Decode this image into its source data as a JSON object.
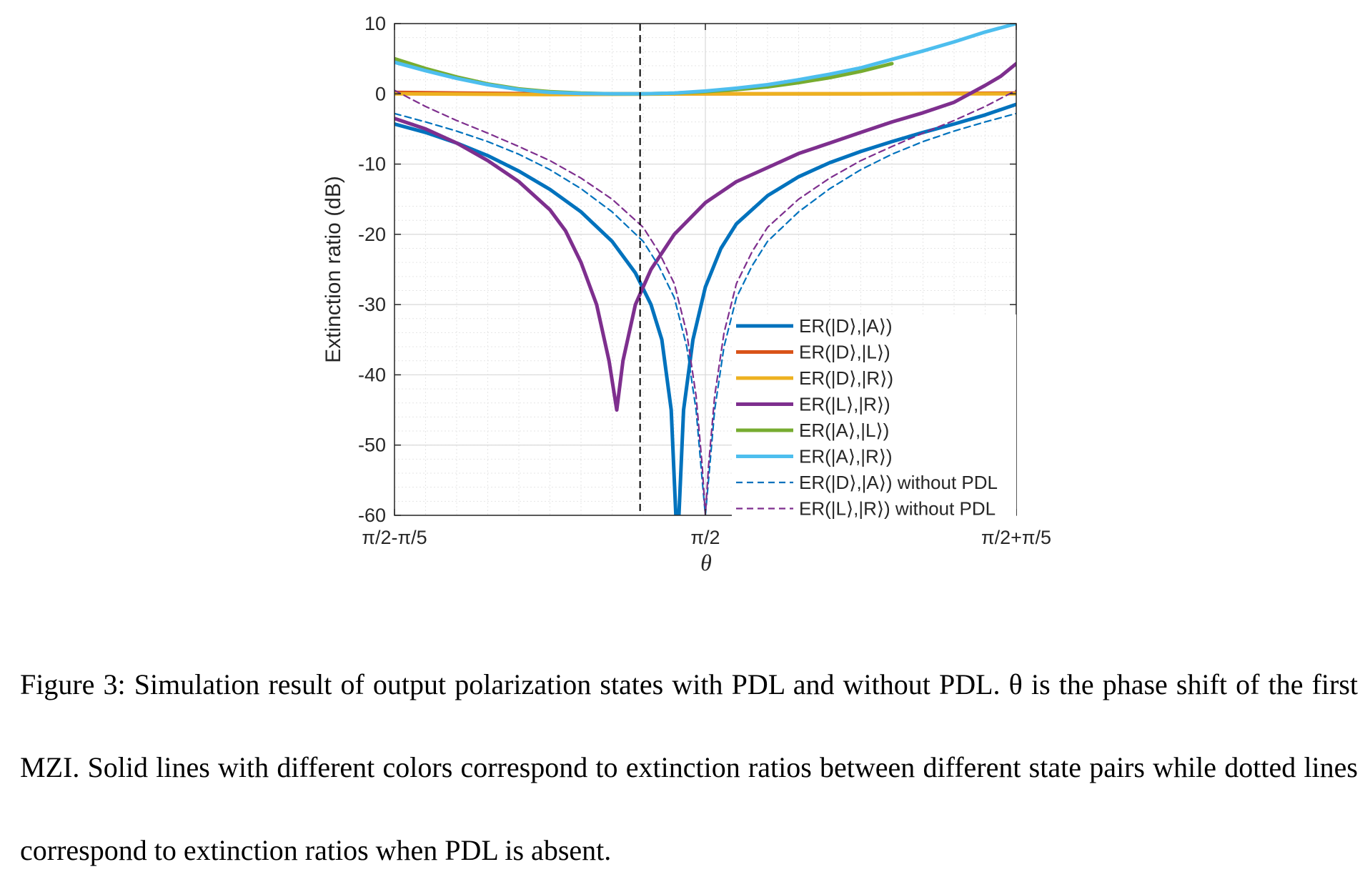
{
  "caption": {
    "text": "Figure 3: Simulation result of output polarization states with PDL and without PDL. θ is the phase shift of the first MZI. Solid lines with different colors correspond to extinction ratios between different state pairs while dotted lines correspond to extinction ratios when PDL is absent."
  },
  "chart_data": {
    "type": "line",
    "title": "",
    "xlabel": "θ",
    "ylabel": "Extinction ratio (dB)",
    "xlim": [
      -0.2,
      0.2
    ],
    "x_units": "theta - π/2 in units of π",
    "ylim": [
      -60,
      10
    ],
    "yticks": [
      10,
      0,
      -10,
      -20,
      -30,
      -40,
      -50,
      -60
    ],
    "xticks": [
      {
        "value": -0.2,
        "label": "π/2-π/5"
      },
      {
        "value": 0.0,
        "label": "π/2"
      },
      {
        "value": 0.2,
        "label": "π/2+π/5"
      }
    ],
    "grid": true,
    "minor_grid": true,
    "legend_position": "bottom-right",
    "vline": {
      "x": -0.042,
      "style": "dashed",
      "color": "#000000"
    },
    "series": [
      {
        "name": "ER(|D⟩,|A⟩)",
        "color": "#0072BD",
        "style": "solid",
        "points": [
          [
            -0.2,
            -4.3
          ],
          [
            -0.18,
            -5.5
          ],
          [
            -0.16,
            -7.0
          ],
          [
            -0.14,
            -8.8
          ],
          [
            -0.12,
            -11.0
          ],
          [
            -0.1,
            -13.6
          ],
          [
            -0.08,
            -16.8
          ],
          [
            -0.06,
            -21.0
          ],
          [
            -0.045,
            -25.5
          ],
          [
            -0.035,
            -30.0
          ],
          [
            -0.028,
            -35.0
          ],
          [
            -0.022,
            -45.0
          ],
          [
            -0.019,
            -60.0
          ],
          [
            -0.017,
            -60.0
          ],
          [
            -0.014,
            -45.0
          ],
          [
            -0.008,
            -35.0
          ],
          [
            0.0,
            -27.5
          ],
          [
            0.01,
            -22.0
          ],
          [
            0.02,
            -18.5
          ],
          [
            0.04,
            -14.5
          ],
          [
            0.06,
            -11.8
          ],
          [
            0.08,
            -9.8
          ],
          [
            0.1,
            -8.2
          ],
          [
            0.12,
            -6.8
          ],
          [
            0.14,
            -5.5
          ],
          [
            0.16,
            -4.3
          ],
          [
            0.18,
            -3.0
          ],
          [
            0.2,
            -1.5
          ]
        ]
      },
      {
        "name": "ER(|D⟩,|L⟩)",
        "color": "#D95319",
        "style": "solid",
        "points": [
          [
            -0.2,
            0.2
          ],
          [
            -0.1,
            0.0
          ],
          [
            0.0,
            0.0
          ],
          [
            0.1,
            0.0
          ],
          [
            0.2,
            0.1
          ]
        ]
      },
      {
        "name": "ER(|D⟩,|R⟩)",
        "color": "#EDB120",
        "style": "solid",
        "points": [
          [
            -0.2,
            0.0
          ],
          [
            -0.1,
            -0.1
          ],
          [
            0.0,
            0.0
          ],
          [
            0.1,
            0.0
          ],
          [
            0.2,
            0.0
          ]
        ]
      },
      {
        "name": "ER(|L⟩,|R⟩)",
        "color": "#7E2F8E",
        "style": "solid",
        "points": [
          [
            -0.2,
            -3.5
          ],
          [
            -0.18,
            -5.0
          ],
          [
            -0.16,
            -7.0
          ],
          [
            -0.14,
            -9.5
          ],
          [
            -0.12,
            -12.5
          ],
          [
            -0.1,
            -16.5
          ],
          [
            -0.09,
            -19.5
          ],
          [
            -0.08,
            -24.0
          ],
          [
            -0.07,
            -30.0
          ],
          [
            -0.062,
            -38.0
          ],
          [
            -0.057,
            -45.0
          ],
          [
            -0.053,
            -38.0
          ],
          [
            -0.045,
            -30.0
          ],
          [
            -0.035,
            -25.0
          ],
          [
            -0.02,
            -20.0
          ],
          [
            0.0,
            -15.5
          ],
          [
            0.02,
            -12.5
          ],
          [
            0.04,
            -10.5
          ],
          [
            0.06,
            -8.5
          ],
          [
            0.08,
            -7.0
          ],
          [
            0.1,
            -5.5
          ],
          [
            0.12,
            -4.0
          ],
          [
            0.14,
            -2.7
          ],
          [
            0.16,
            -1.2
          ],
          [
            0.18,
            1.2
          ],
          [
            0.19,
            2.5
          ],
          [
            0.2,
            4.3
          ]
        ]
      },
      {
        "name": "ER(|A⟩,|L⟩)",
        "color": "#77AC30",
        "style": "solid",
        "points": [
          [
            -0.2,
            5.0
          ],
          [
            -0.18,
            3.6
          ],
          [
            -0.16,
            2.4
          ],
          [
            -0.14,
            1.4
          ],
          [
            -0.12,
            0.7
          ],
          [
            -0.1,
            0.3
          ],
          [
            -0.08,
            0.1
          ],
          [
            -0.06,
            0.0
          ],
          [
            -0.04,
            0.0
          ],
          [
            -0.02,
            0.1
          ],
          [
            0.0,
            0.3
          ],
          [
            0.02,
            0.6
          ],
          [
            0.04,
            1.0
          ],
          [
            0.06,
            1.6
          ],
          [
            0.08,
            2.3
          ],
          [
            0.1,
            3.2
          ],
          [
            0.12,
            4.3
          ]
        ]
      },
      {
        "name": "ER(|A⟩,|R⟩)",
        "color": "#4DBEEE",
        "style": "solid",
        "points": [
          [
            -0.2,
            4.5
          ],
          [
            -0.18,
            3.3
          ],
          [
            -0.16,
            2.2
          ],
          [
            -0.14,
            1.3
          ],
          [
            -0.12,
            0.6
          ],
          [
            -0.1,
            0.2
          ],
          [
            -0.08,
            0.05
          ],
          [
            -0.06,
            0.0
          ],
          [
            -0.04,
            0.0
          ],
          [
            -0.02,
            0.1
          ],
          [
            0.0,
            0.4
          ],
          [
            0.02,
            0.8
          ],
          [
            0.04,
            1.3
          ],
          [
            0.06,
            2.0
          ],
          [
            0.08,
            2.8
          ],
          [
            0.1,
            3.7
          ],
          [
            0.12,
            4.9
          ],
          [
            0.14,
            6.1
          ],
          [
            0.16,
            7.4
          ],
          [
            0.18,
            8.8
          ],
          [
            0.2,
            10.0
          ]
        ]
      },
      {
        "name": "ER(|D⟩,|A⟩) without PDL",
        "color": "#0072BD",
        "style": "dashed",
        "points": [
          [
            -0.2,
            -2.8
          ],
          [
            -0.18,
            -4.0
          ],
          [
            -0.16,
            -5.3
          ],
          [
            -0.14,
            -6.8
          ],
          [
            -0.12,
            -8.6
          ],
          [
            -0.1,
            -10.8
          ],
          [
            -0.08,
            -13.5
          ],
          [
            -0.06,
            -16.8
          ],
          [
            -0.04,
            -21.0
          ],
          [
            -0.03,
            -24.5
          ],
          [
            -0.02,
            -29.0
          ],
          [
            -0.012,
            -36.0
          ],
          [
            -0.006,
            -45.0
          ],
          [
            -0.002,
            -55.0
          ],
          [
            0.0,
            -60.0
          ],
          [
            0.002,
            -55.0
          ],
          [
            0.006,
            -45.0
          ],
          [
            0.012,
            -36.0
          ],
          [
            0.02,
            -29.0
          ],
          [
            0.03,
            -24.5
          ],
          [
            0.04,
            -21.0
          ],
          [
            0.06,
            -16.8
          ],
          [
            0.08,
            -13.5
          ],
          [
            0.1,
            -10.8
          ],
          [
            0.12,
            -8.6
          ],
          [
            0.14,
            -6.8
          ],
          [
            0.16,
            -5.3
          ],
          [
            0.18,
            -4.0
          ],
          [
            0.2,
            -2.8
          ]
        ]
      },
      {
        "name": "ER(|L⟩,|R⟩) without PDL",
        "color": "#7E2F8E",
        "style": "dashed",
        "points": [
          [
            -0.2,
            0.5
          ],
          [
            -0.18,
            -1.8
          ],
          [
            -0.16,
            -3.8
          ],
          [
            -0.14,
            -5.6
          ],
          [
            -0.12,
            -7.5
          ],
          [
            -0.1,
            -9.5
          ],
          [
            -0.08,
            -12.0
          ],
          [
            -0.06,
            -15.0
          ],
          [
            -0.04,
            -19.0
          ],
          [
            -0.03,
            -22.5
          ],
          [
            -0.02,
            -27.0
          ],
          [
            -0.012,
            -34.0
          ],
          [
            -0.006,
            -43.0
          ],
          [
            -0.002,
            -53.0
          ],
          [
            0.0,
            -60.0
          ],
          [
            0.002,
            -53.0
          ],
          [
            0.006,
            -43.0
          ],
          [
            0.012,
            -34.0
          ],
          [
            0.02,
            -27.0
          ],
          [
            0.03,
            -22.5
          ],
          [
            0.04,
            -19.0
          ],
          [
            0.06,
            -15.0
          ],
          [
            0.08,
            -12.0
          ],
          [
            0.1,
            -9.5
          ],
          [
            0.12,
            -7.5
          ],
          [
            0.14,
            -5.6
          ],
          [
            0.16,
            -3.8
          ],
          [
            0.18,
            -1.8
          ],
          [
            0.2,
            0.5
          ]
        ]
      }
    ]
  }
}
